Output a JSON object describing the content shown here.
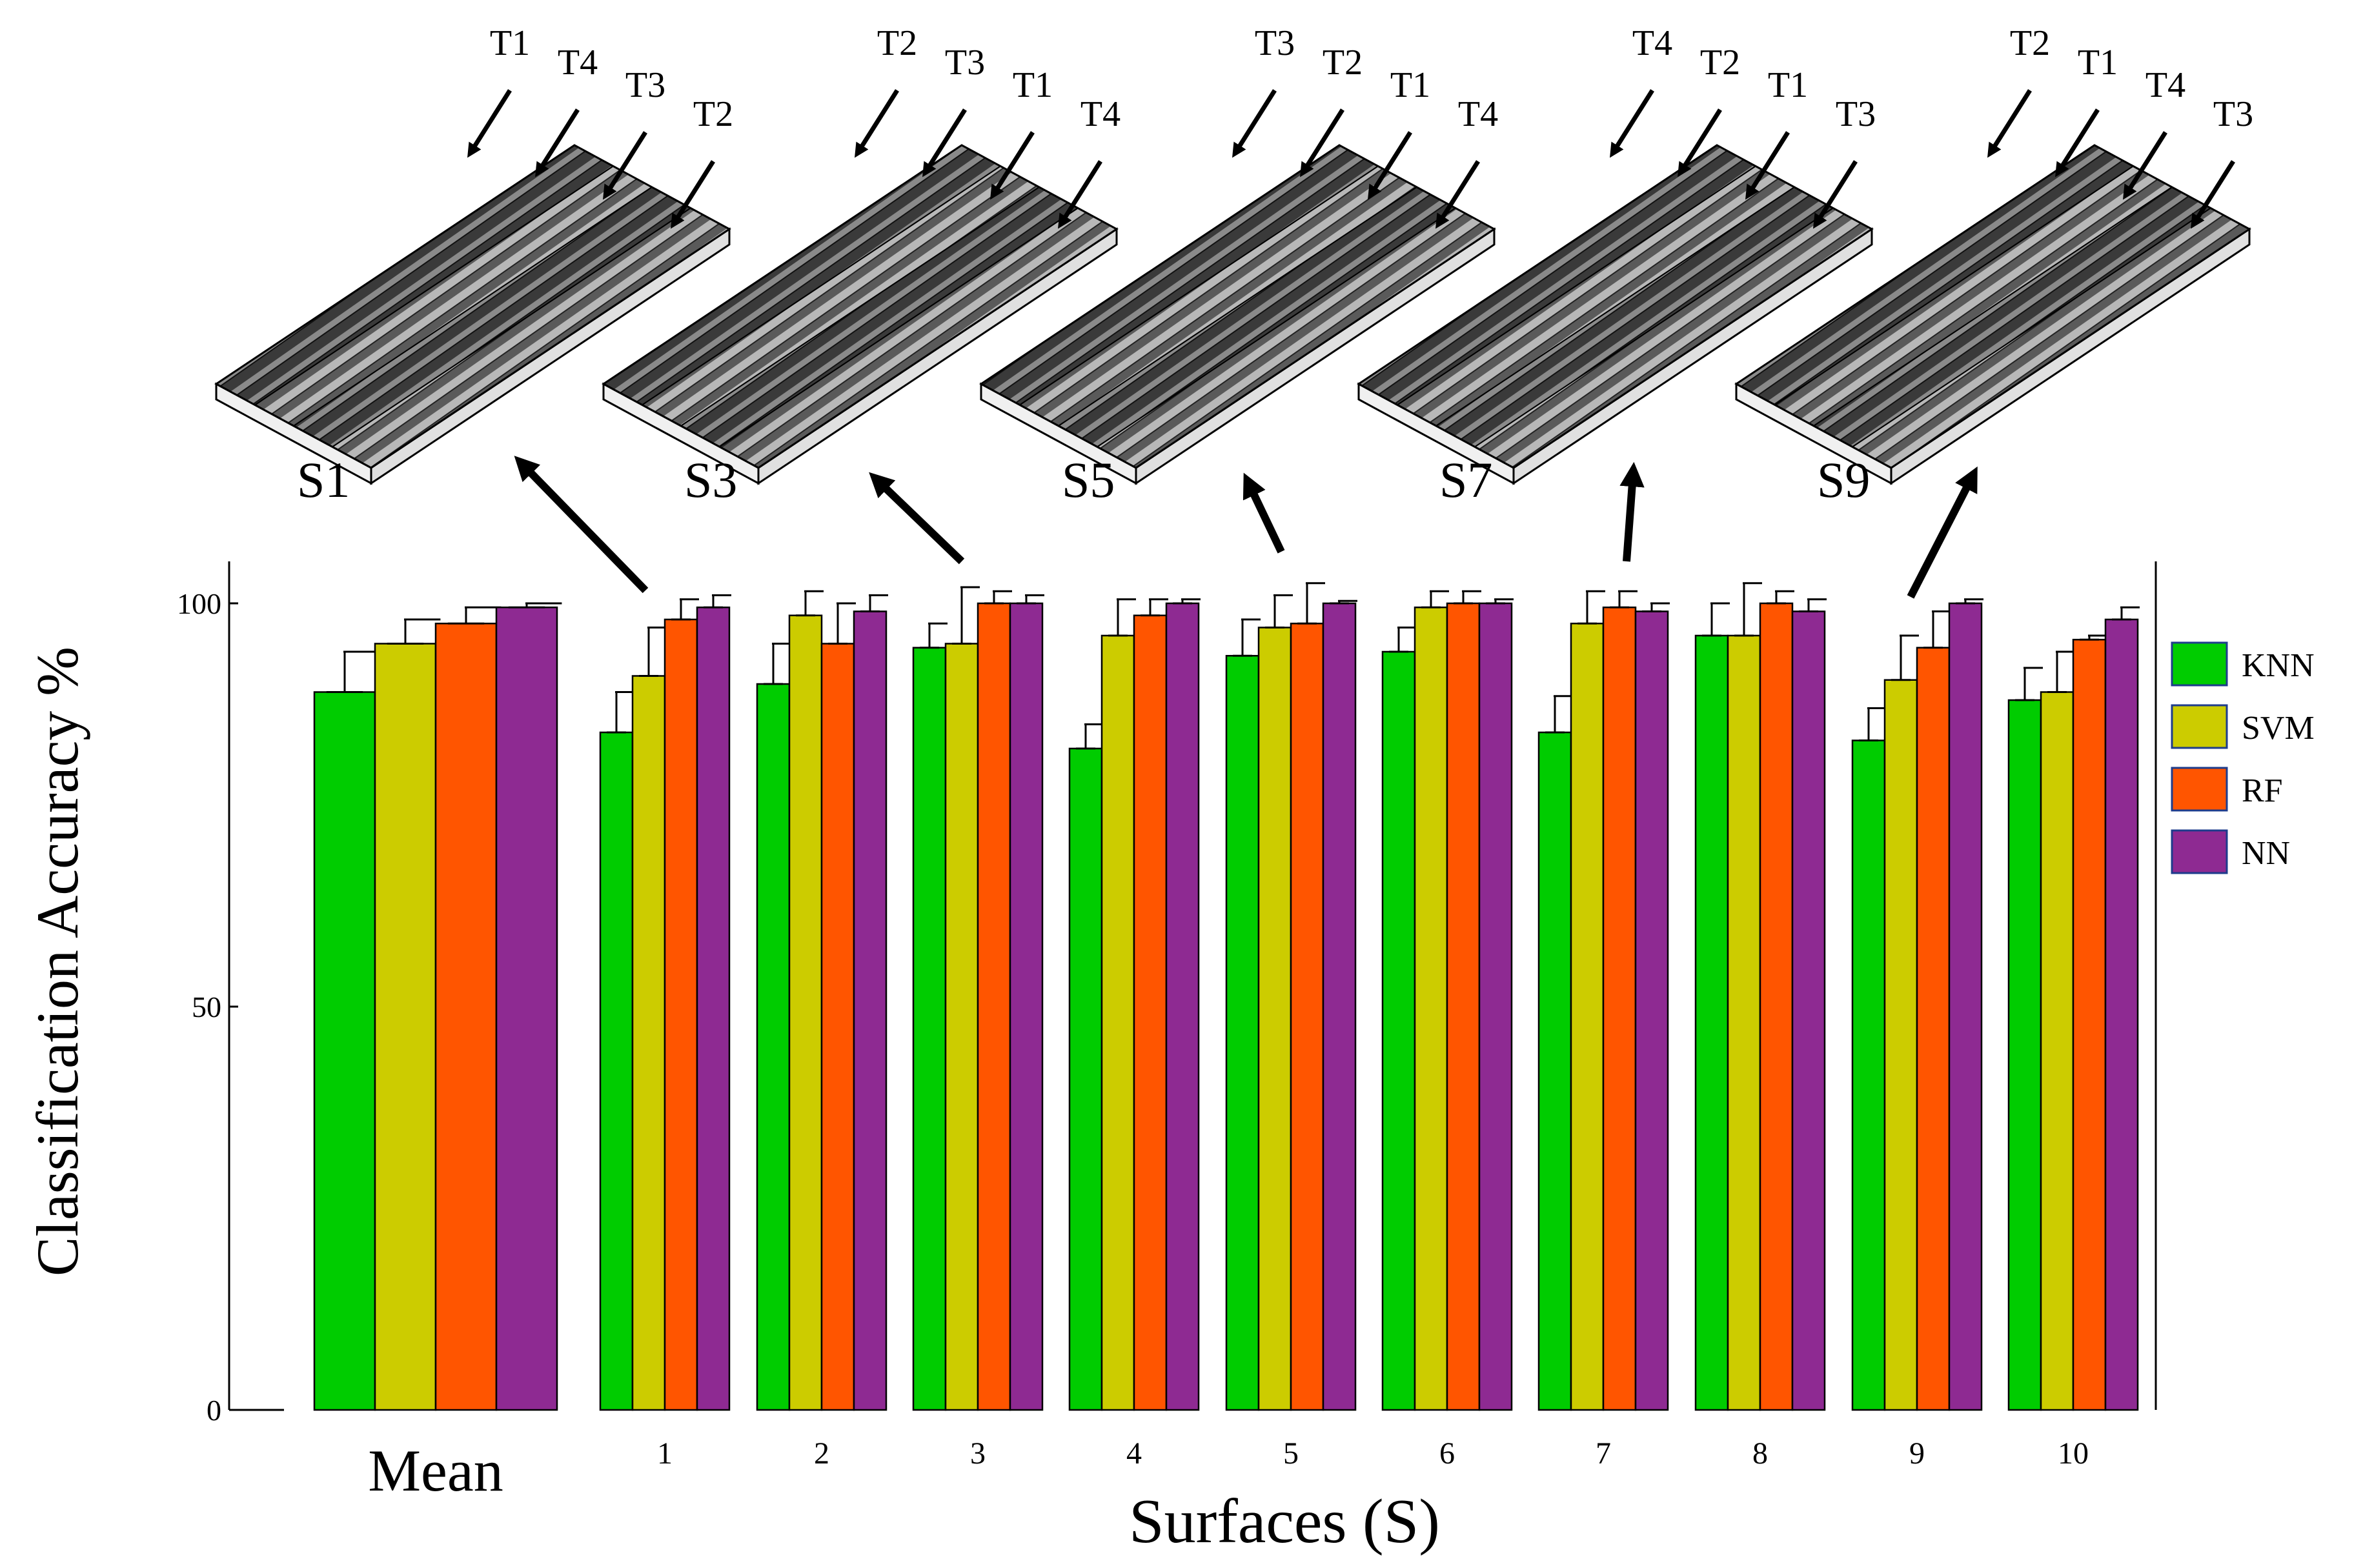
{
  "chart_data": {
    "type": "bar",
    "title": "",
    "xlabel": "Surfaces (S)",
    "ylabel": "Classification Accuracy %",
    "ylim": [
      0,
      100
    ],
    "yticks": [
      "0",
      "50",
      "100"
    ],
    "grid": false,
    "legend_position": "right",
    "categories": [
      "Mean",
      "1",
      "2",
      "3",
      "4",
      "5",
      "6",
      "7",
      "8",
      "9",
      "10"
    ],
    "series": [
      {
        "name": "KNN",
        "color": "#00cc00",
        "values": [
          89,
          84,
          90,
          94.5,
          82,
          93.5,
          94,
          84,
          96,
          83,
          88
        ],
        "errors": [
          5,
          5,
          5,
          3,
          3,
          4.5,
          3,
          4.5,
          4,
          4,
          4
        ]
      },
      {
        "name": "SVM",
        "color": "#cccc00",
        "values": [
          95,
          91,
          98.5,
          95,
          96,
          97,
          99.5,
          97.5,
          96,
          90.5,
          89
        ],
        "errors": [
          3,
          6,
          3,
          7,
          4.5,
          4,
          2,
          4,
          6.5,
          5.5,
          5
        ]
      },
      {
        "name": "RF",
        "color": "#ff5500",
        "values": [
          97.5,
          98,
          95,
          100,
          98.5,
          97.5,
          100,
          99.5,
          100,
          94.5,
          95.5
        ],
        "errors": [
          2,
          2.5,
          5,
          1.5,
          2,
          5,
          1.5,
          2,
          1.5,
          4.5,
          0.5
        ]
      },
      {
        "name": "NN",
        "color": "#8e2a92",
        "values": [
          99.5,
          99.5,
          99,
          100,
          100,
          100,
          100,
          99,
          99,
          100,
          98
        ],
        "errors": [
          0.5,
          1.5,
          2,
          1,
          0.5,
          0.3,
          0.5,
          1,
          1.5,
          0.5,
          1.5
        ]
      }
    ],
    "surface_models": [
      {
        "label": "S1",
        "points_to": "1",
        "tags": [
          "T1",
          "T4",
          "T3",
          "T2"
        ]
      },
      {
        "label": "S3",
        "points_to": "3",
        "tags": [
          "T2",
          "T3",
          "T1",
          "T4"
        ]
      },
      {
        "label": "S5",
        "points_to": "5",
        "tags": [
          "T3",
          "T2",
          "T1",
          "T4"
        ]
      },
      {
        "label": "S7",
        "points_to": "7",
        "tags": [
          "T4",
          "T2",
          "T1",
          "T3"
        ]
      },
      {
        "label": "S9",
        "points_to": "9",
        "tags": [
          "T2",
          "T1",
          "T4",
          "T3"
        ]
      }
    ]
  }
}
